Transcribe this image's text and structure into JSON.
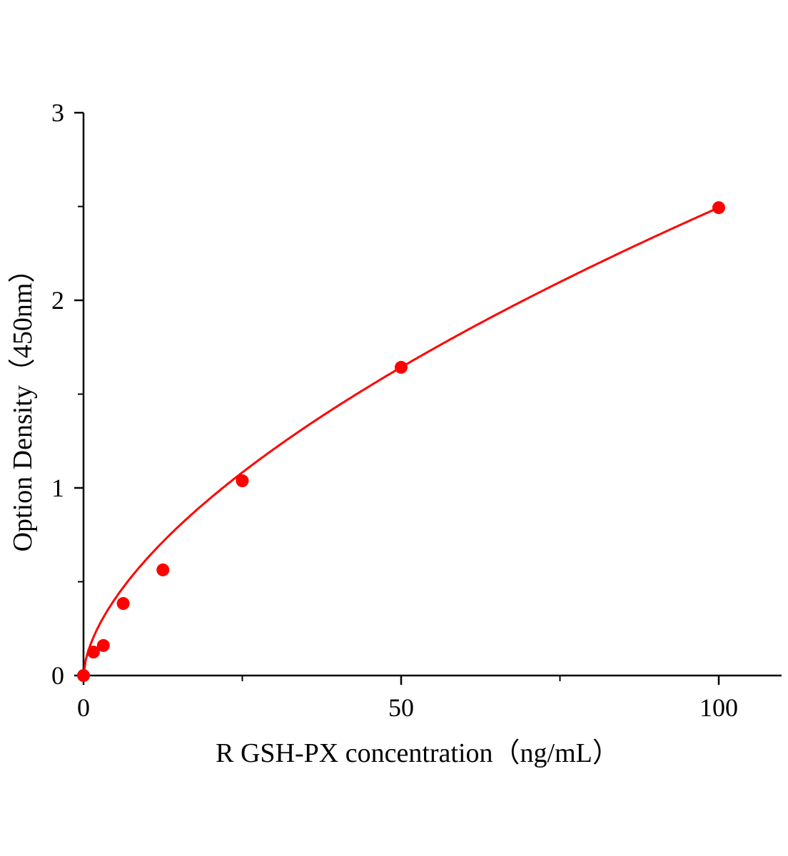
{
  "chart_data": {
    "type": "scatter",
    "title": "",
    "xlabel": "R GSH-PX  concentration（ng/mL）",
    "ylabel": "Option Density（450nm）",
    "xlim": [
      0,
      110
    ],
    "ylim": [
      0,
      3
    ],
    "x_ticks": [
      0,
      50,
      100
    ],
    "x_tick_labels": [
      "0",
      "50",
      "100"
    ],
    "x_minor_ticks": [
      25,
      75
    ],
    "y_ticks": [
      0,
      1,
      2,
      3
    ],
    "y_tick_labels": [
      "0",
      "1",
      "2",
      "3"
    ],
    "y_minor_ticks": [
      0.5,
      1.5,
      2.5
    ],
    "grid": false,
    "colors": {
      "series": "#ff0000",
      "axis": "#000000"
    },
    "series": [
      {
        "x": [
          0,
          1.5625,
          3.125,
          6.25,
          12.5,
          25,
          50,
          100
        ],
        "y": [
          0,
          0.125,
          0.16,
          0.384,
          0.563,
          1.038,
          1.643,
          2.494
        ],
        "marker": "circle",
        "fit_curve": true
      }
    ]
  }
}
